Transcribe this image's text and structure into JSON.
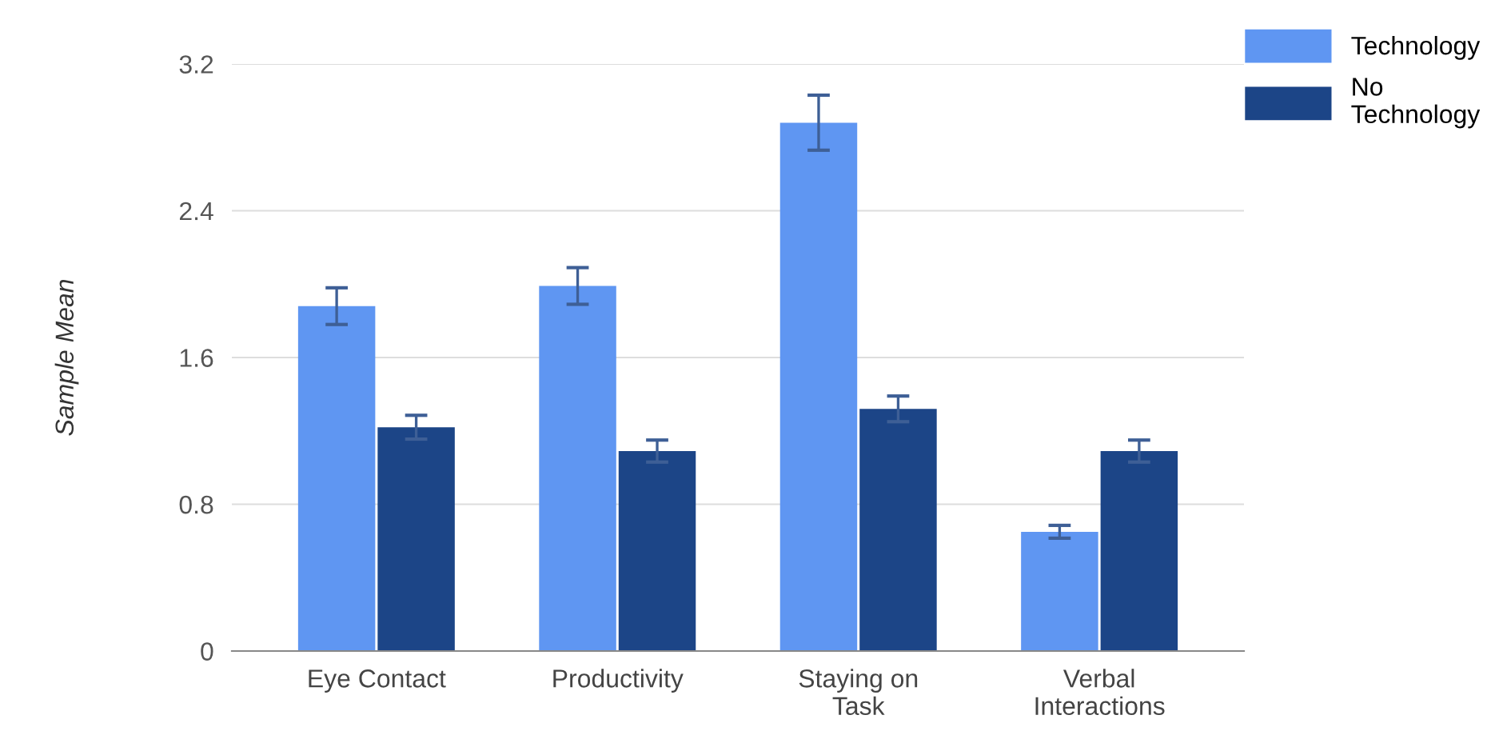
{
  "chart_data": {
    "type": "bar",
    "ylabel": "Sample Mean",
    "categories": [
      "Eye Contact",
      "Productivity",
      "Staying on\nTask",
      "Verbal\nInteractions"
    ],
    "series": [
      {
        "name": "Technology",
        "color": "#5f96f2",
        "values": [
          1.88,
          1.99,
          2.88,
          0.65
        ],
        "errors": [
          0.1,
          0.1,
          0.15,
          0.035
        ]
      },
      {
        "name": "No\nTechnology",
        "color": "#1c4587",
        "values": [
          1.22,
          1.09,
          1.32,
          1.09
        ],
        "errors": [
          0.065,
          0.06,
          0.07,
          0.06
        ]
      }
    ],
    "ylim": [
      0,
      3.2
    ],
    "yticks": [
      0,
      0.8,
      1.6,
      2.4,
      3.2
    ],
    "grid": "y",
    "legend": "top right"
  }
}
